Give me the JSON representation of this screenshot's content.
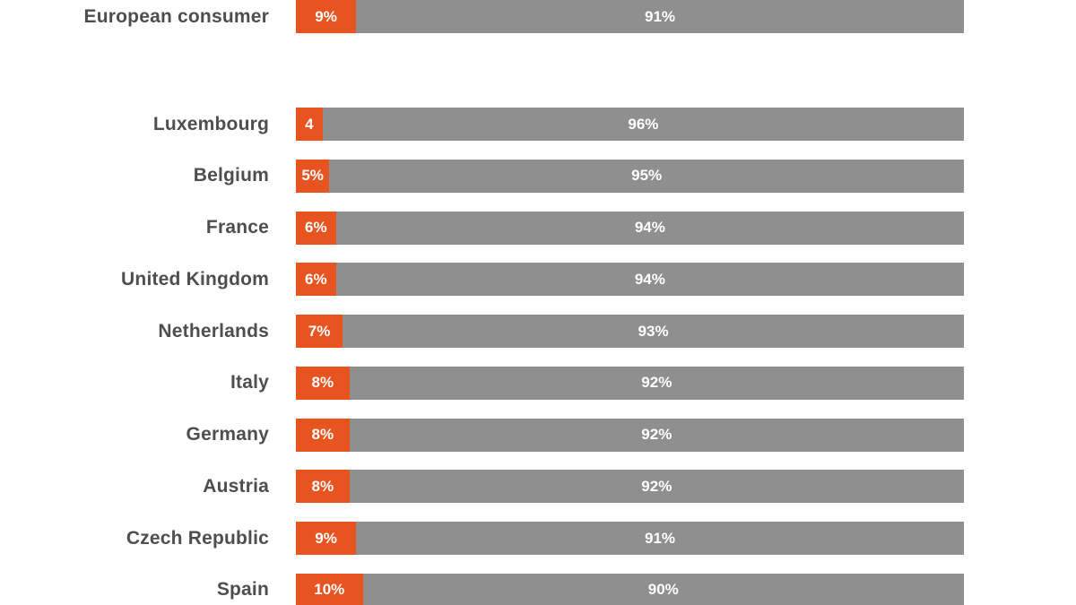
{
  "page": {
    "background_color": "#ffffff",
    "label_text_color": "#4d4e50",
    "value_text_color": "#ffffff"
  },
  "chart_data": {
    "type": "bar",
    "orientation": "horizontal",
    "stacked": true,
    "title": "",
    "xlabel": "",
    "ylabel": "",
    "xlim": [
      0,
      100
    ],
    "gridlines": false,
    "legend": "none",
    "categories": [
      "European consumer",
      "Luxembourg",
      "Belgium",
      "France",
      "United Kingdom",
      "Netherlands",
      "Italy",
      "Germany",
      "Austria",
      "Czech Republic",
      "Spain"
    ],
    "series": [
      {
        "name": "orange-segment",
        "color": "#e8541f",
        "values": [
          9,
          4,
          5,
          6,
          6,
          7,
          8,
          8,
          8,
          9,
          10
        ],
        "labels": [
          "9%",
          "4",
          "5%",
          "6%",
          "6%",
          "7%",
          "8%",
          "8%",
          "8%",
          "9%",
          "10%"
        ]
      },
      {
        "name": "gray-segment",
        "color": "#8f8f8f",
        "values": [
          91,
          96,
          95,
          94,
          94,
          93,
          92,
          92,
          92,
          91,
          90
        ],
        "labels": [
          "91%",
          "96%",
          "95%",
          "94%",
          "94%",
          "93%",
          "92%",
          "92%",
          "92%",
          "91%",
          "90%"
        ]
      }
    ],
    "layout_hints": {
      "first_row_is_summary": true,
      "gap_between_summary_and_countries": true,
      "top_and_bottom_rows_partially_cropped": true
    }
  }
}
